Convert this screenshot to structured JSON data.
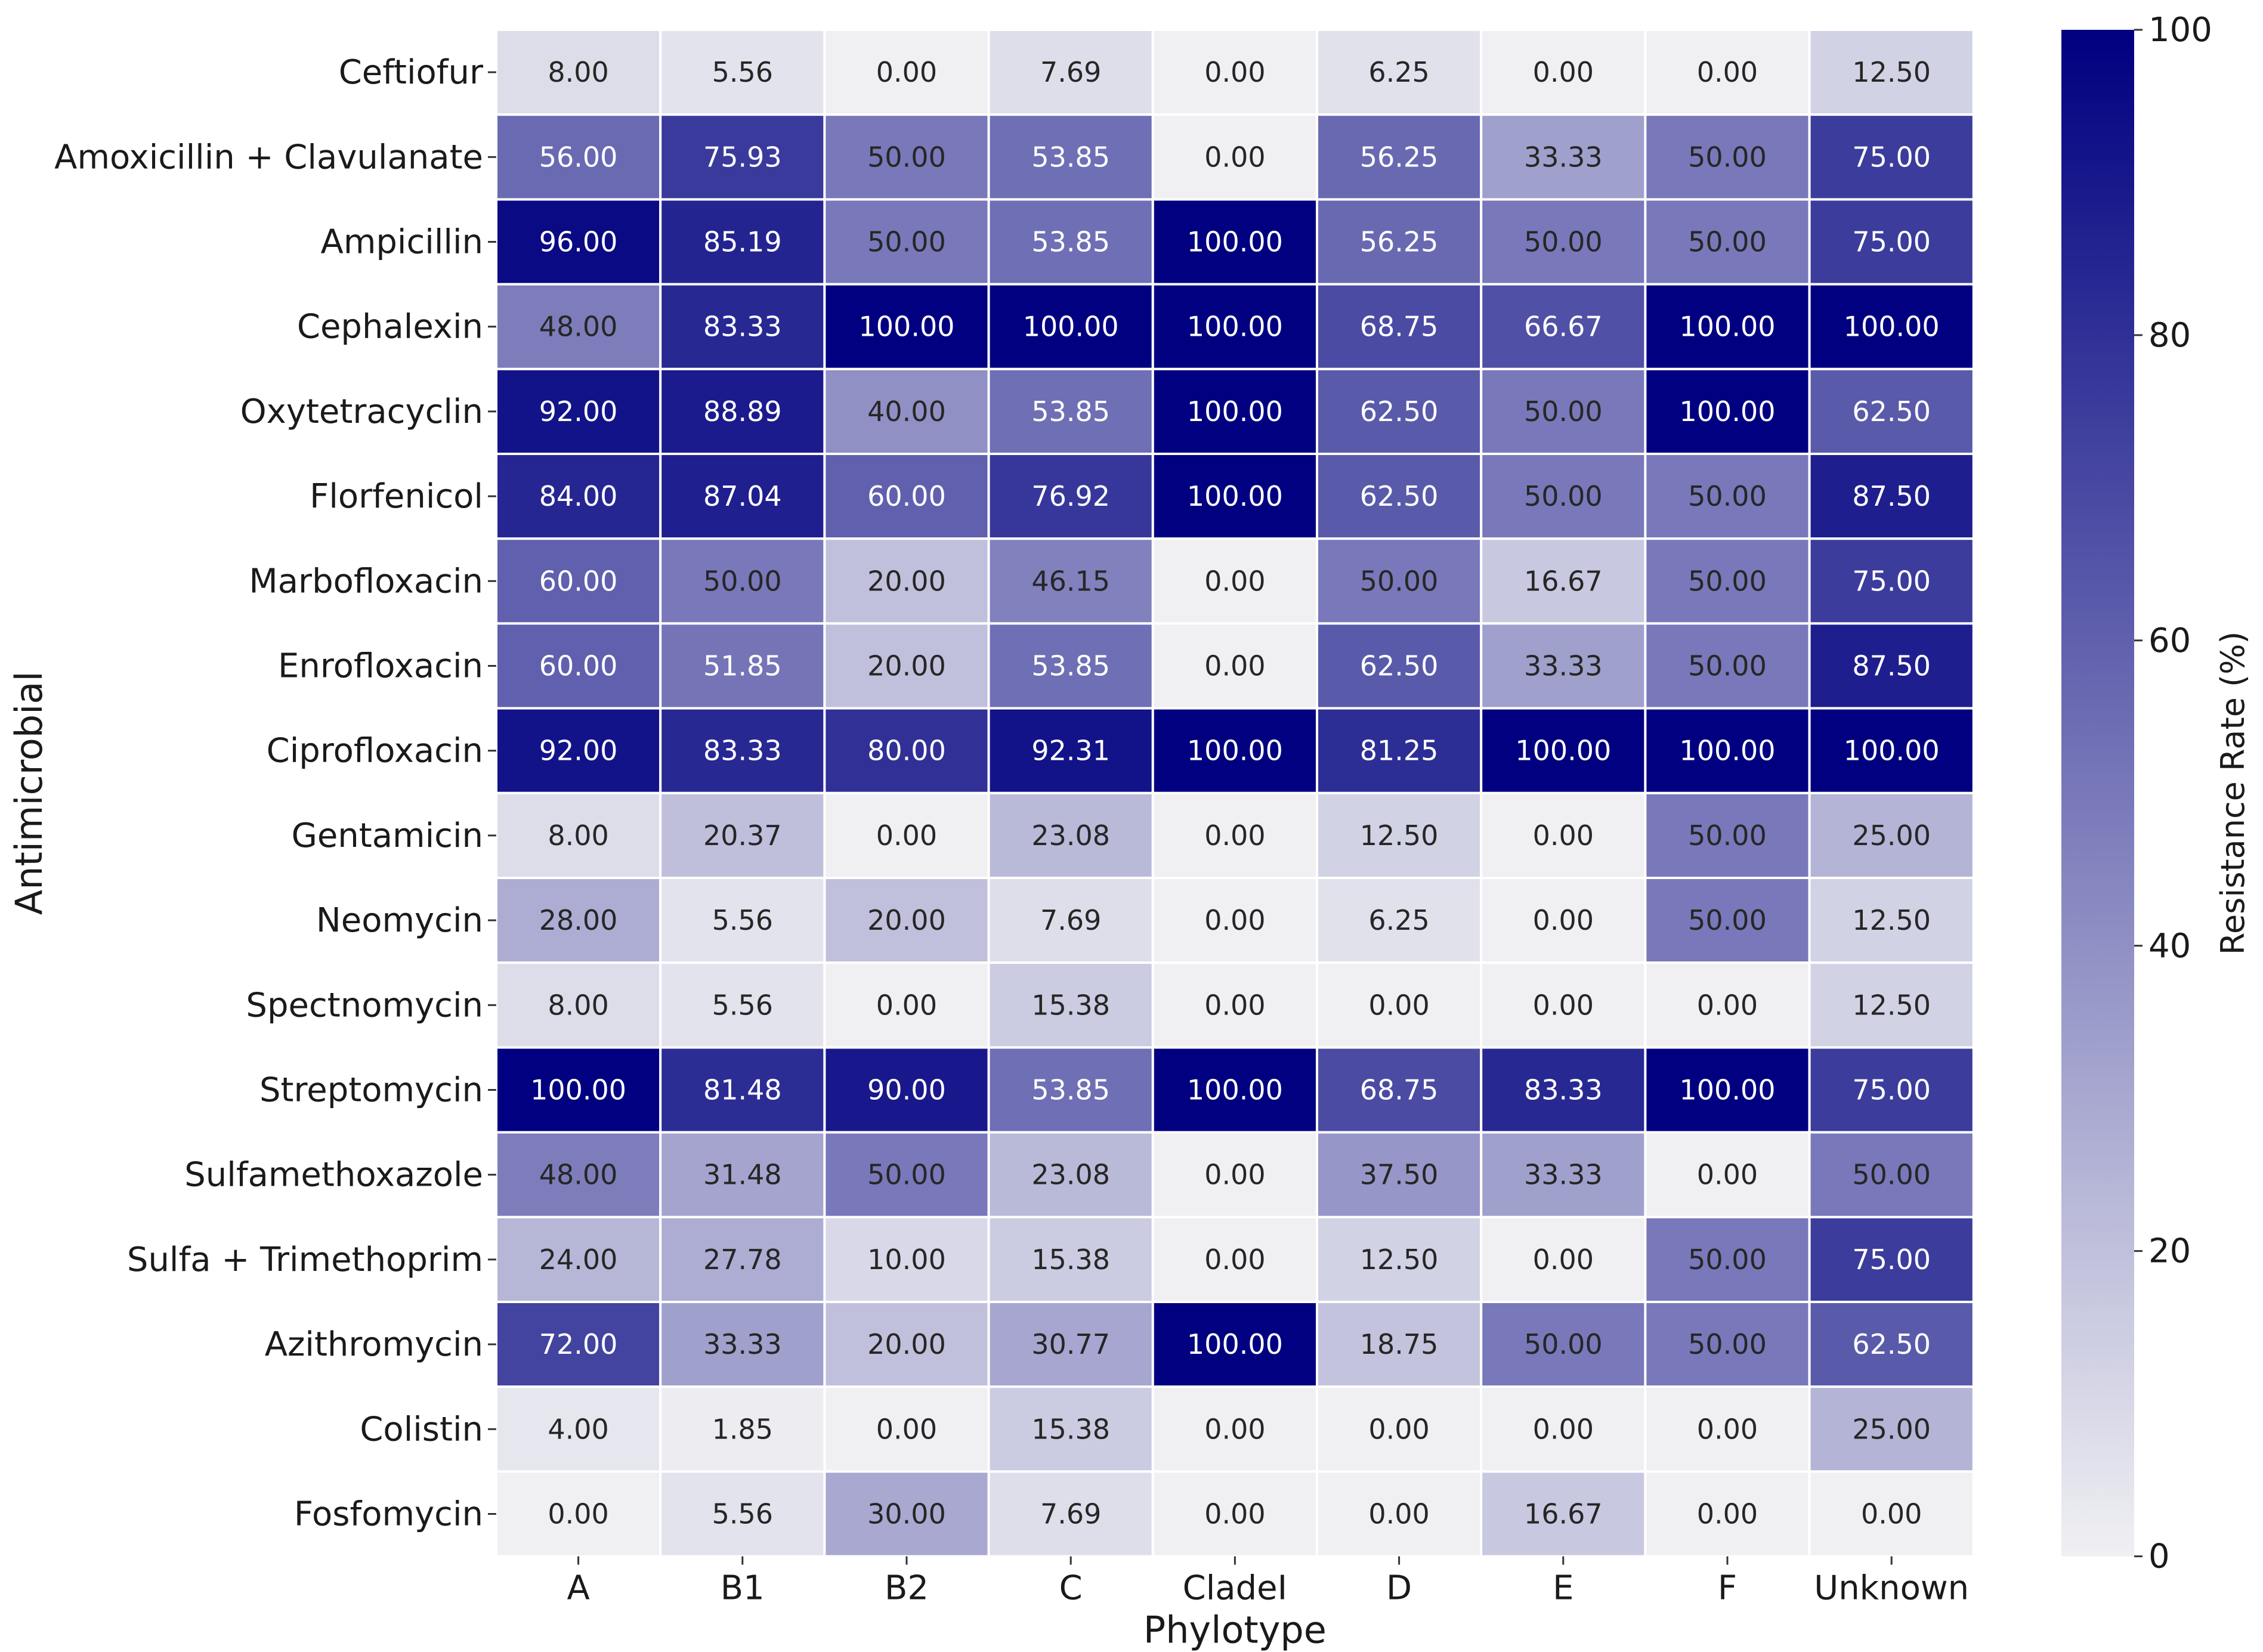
{
  "chart_data": {
    "type": "heatmap",
    "title": "",
    "xlabel": "Phylotype",
    "ylabel": "Antimicrobial",
    "columns": [
      "A",
      "B1",
      "B2",
      "C",
      "CladeI",
      "D",
      "E",
      "F",
      "Unknown"
    ],
    "rows": [
      "Ceftiofur",
      "Amoxicillin + Clavulanate",
      "Ampicillin",
      "Cephalexin",
      "Oxytetracyclin",
      "Florfenicol",
      "Marbofloxacin",
      "Enrofloxacin",
      "Ciprofloxacin",
      "Gentamicin",
      "Neomycin",
      "Spectnomycin",
      "Streptomycin",
      "Sulfamethoxazole",
      "Sulfa + Trimethoprim",
      "Azithromycin",
      "Colistin",
      "Fosfomycin"
    ],
    "values": [
      [
        8.0,
        5.56,
        0.0,
        7.69,
        0.0,
        6.25,
        0.0,
        0.0,
        12.5
      ],
      [
        56.0,
        75.93,
        50.0,
        53.85,
        0.0,
        56.25,
        33.33,
        50.0,
        75.0
      ],
      [
        96.0,
        85.19,
        50.0,
        53.85,
        100.0,
        56.25,
        50.0,
        50.0,
        75.0
      ],
      [
        48.0,
        83.33,
        100.0,
        100.0,
        100.0,
        68.75,
        66.67,
        100.0,
        100.0
      ],
      [
        92.0,
        88.89,
        40.0,
        53.85,
        100.0,
        62.5,
        50.0,
        100.0,
        62.5
      ],
      [
        84.0,
        87.04,
        60.0,
        76.92,
        100.0,
        62.5,
        50.0,
        50.0,
        87.5
      ],
      [
        60.0,
        50.0,
        20.0,
        46.15,
        0.0,
        50.0,
        16.67,
        50.0,
        75.0
      ],
      [
        60.0,
        51.85,
        20.0,
        53.85,
        0.0,
        62.5,
        33.33,
        50.0,
        87.5
      ],
      [
        92.0,
        83.33,
        80.0,
        92.31,
        100.0,
        81.25,
        100.0,
        100.0,
        100.0
      ],
      [
        8.0,
        20.37,
        0.0,
        23.08,
        0.0,
        12.5,
        0.0,
        50.0,
        25.0
      ],
      [
        28.0,
        5.56,
        20.0,
        7.69,
        0.0,
        6.25,
        0.0,
        50.0,
        12.5
      ],
      [
        8.0,
        5.56,
        0.0,
        15.38,
        0.0,
        0.0,
        0.0,
        0.0,
        12.5
      ],
      [
        100.0,
        81.48,
        90.0,
        53.85,
        100.0,
        68.75,
        83.33,
        100.0,
        75.0
      ],
      [
        48.0,
        31.48,
        50.0,
        23.08,
        0.0,
        37.5,
        33.33,
        0.0,
        50.0
      ],
      [
        24.0,
        27.78,
        10.0,
        15.38,
        0.0,
        12.5,
        0.0,
        50.0,
        75.0
      ],
      [
        72.0,
        33.33,
        20.0,
        30.77,
        100.0,
        18.75,
        50.0,
        50.0,
        62.5
      ],
      [
        4.0,
        1.85,
        0.0,
        15.38,
        0.0,
        0.0,
        0.0,
        0.0,
        25.0
      ],
      [
        0.0,
        5.56,
        30.0,
        7.69,
        0.0,
        0.0,
        16.67,
        0.0,
        0.0
      ]
    ],
    "value_format_decimals": 2,
    "colorbar": {
      "label": "Resistance Rate (%)",
      "vmin": 0,
      "vmax": 100,
      "ticks": [
        0,
        20,
        40,
        60,
        80,
        100
      ],
      "color_low": "#f0f0f3",
      "color_high": "#000080"
    }
  }
}
